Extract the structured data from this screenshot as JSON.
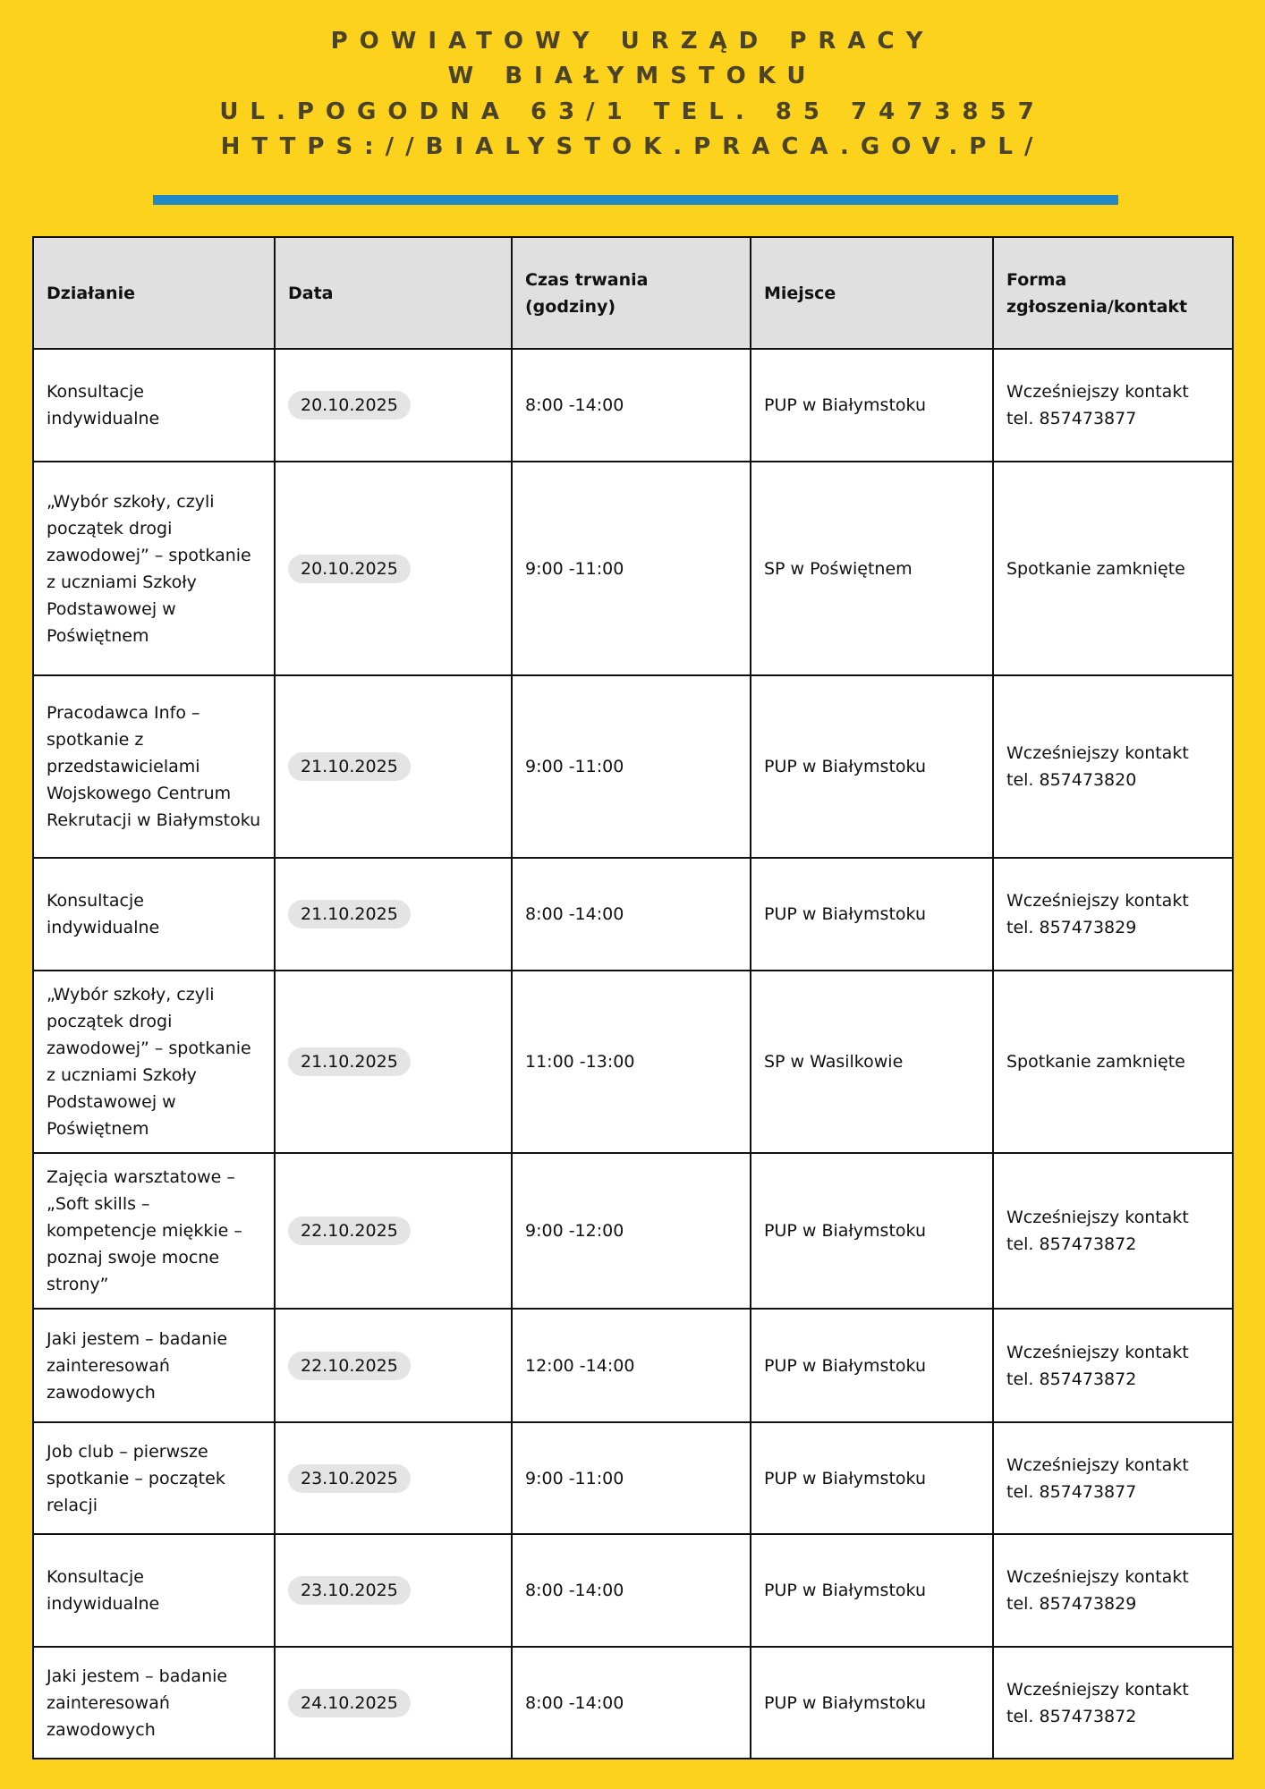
{
  "header": {
    "line1": "POWIATOWY URZĄD PRACY",
    "line2": "W BIAŁYMSTOKU",
    "line3": "UL.POGODNA 63/1 TEL. 85 7473857",
    "line4": "HTTPS://BIALYSTOK.PRACA.GOV.PL/"
  },
  "colors": {
    "background": "#fcd21d",
    "divider": "#2389c4",
    "header_row": "#e0e0e0",
    "date_pill": "#e4e4e4"
  },
  "table": {
    "columns": [
      "Działanie",
      "Data",
      "Czas trwania (godziny)",
      "Miejsce",
      "Forma zgłoszenia/kontakt"
    ],
    "rows": [
      {
        "action": "Konsultacje indywidualne",
        "date": "20.10.2025",
        "time": "8:00 -14:00",
        "place": "PUP w Białymstoku",
        "contact": "Wcześniejszy kontakt tel. 857473877"
      },
      {
        "action": "„Wybór szkoły, czyli początek drogi zawodowej” – spotkanie z uczniami Szkoły Podstawowej w Poświętnem",
        "date": "20.10.2025",
        "time": "9:00 -11:00",
        "place": "SP w Poświętnem",
        "contact": "Spotkanie zamknięte"
      },
      {
        "action": "Pracodawca Info – spotkanie z przedstawicielami Wojskowego Centrum Rekrutacji w Białymstoku",
        "date": "21.10.2025",
        "time": "9:00 -11:00",
        "place": "PUP w Białymstoku",
        "contact": "Wcześniejszy kontakt tel. 857473820"
      },
      {
        "action": "Konsultacje indywidualne",
        "date": "21.10.2025",
        "time": "8:00 -14:00",
        "place": "PUP w Białymstoku",
        "contact": "Wcześniejszy kontakt tel. 857473829"
      },
      {
        "action": "„Wybór szkoły, czyli początek drogi zawodowej” – spotkanie z uczniami Szkoły Podstawowej w Poświętnem",
        "date": "21.10.2025",
        "time": "11:00 -13:00",
        "place": "SP w Wasilkowie",
        "contact": "Spotkanie zamknięte"
      },
      {
        "action": "Zajęcia warsztatowe – „Soft skills – kompetencje miękkie – poznaj swoje mocne strony”",
        "date": "22.10.2025",
        "time": "9:00 -12:00",
        "place": "PUP w Białymstoku",
        "contact": "Wcześniejszy kontakt tel. 857473872"
      },
      {
        "action": "Jaki jestem – badanie zainteresowań zawodowych",
        "date": "22.10.2025",
        "time": "12:00 -14:00",
        "place": "PUP w Białymstoku",
        "contact": "Wcześniejszy kontakt tel. 857473872"
      },
      {
        "action": "Job club – pierwsze spotkanie – początek relacji",
        "date": "23.10.2025",
        "time": "9:00 -11:00",
        "place": "PUP w Białymstoku",
        "contact": "Wcześniejszy kontakt tel. 857473877"
      },
      {
        "action": "Konsultacje indywidualne",
        "date": "23.10.2025",
        "time": "8:00 -14:00",
        "place": "PUP w Białymstoku",
        "contact": "Wcześniejszy kontakt tel. 857473829"
      },
      {
        "action": "Jaki jestem – badanie zainteresowań zawodowych",
        "date": "24.10.2025",
        "time": "8:00 -14:00",
        "place": "PUP w Białymstoku",
        "contact": "Wcześniejszy kontakt tel. 857473872"
      }
    ]
  }
}
